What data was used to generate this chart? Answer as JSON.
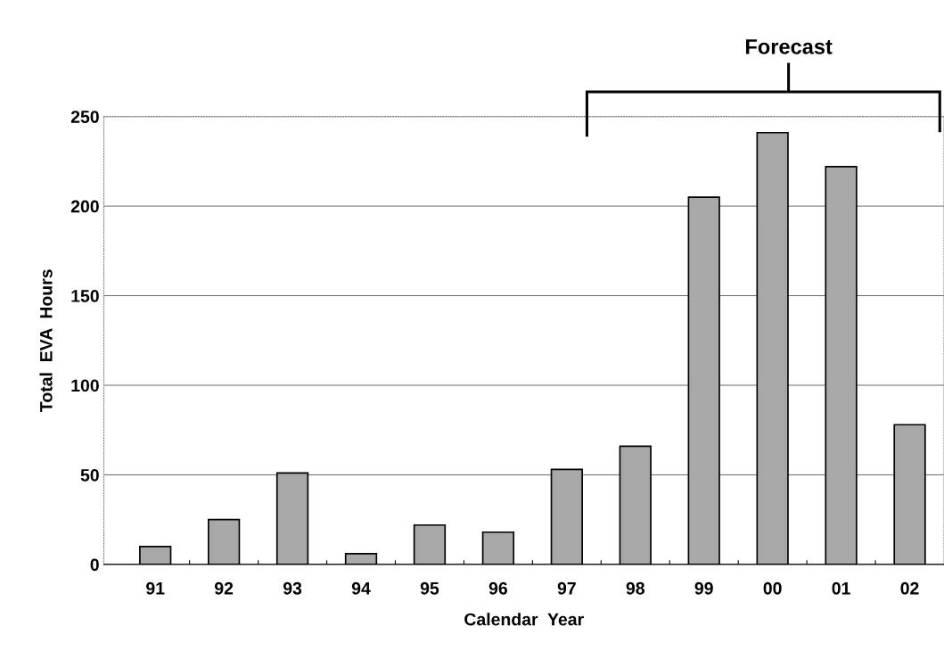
{
  "chart_data": {
    "type": "bar",
    "xlabel": "Calendar  Year",
    "ylabel": "Total  EVA  Hours",
    "categories": [
      "91",
      "92",
      "93",
      "94",
      "95",
      "96",
      "97",
      "98",
      "99",
      "00",
      "01",
      "02"
    ],
    "values": [
      10,
      25,
      51,
      6,
      22,
      18,
      53,
      66,
      205,
      241,
      222,
      78
    ],
    "color": "#a8a8a8",
    "ylim": [
      0,
      250
    ],
    "yticks": [
      0,
      50,
      100,
      150,
      200,
      250
    ],
    "grid": "y",
    "annotations": [
      "Forecast"
    ]
  }
}
